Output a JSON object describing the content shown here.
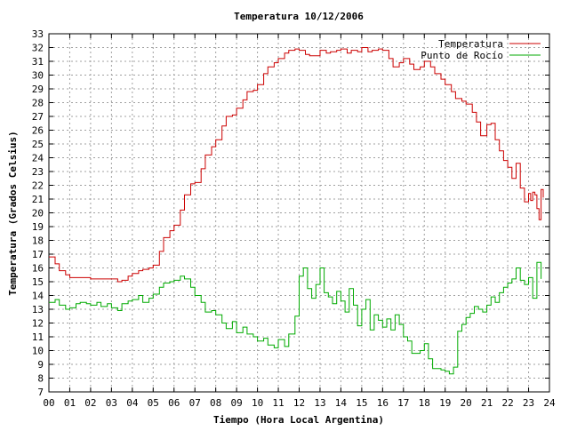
{
  "chart_data": {
    "type": "line",
    "title": "Temperatura 10/12/2006",
    "xlabel": "Tiempo (Hora Local Argentina)",
    "ylabel": "Temperatura (Grados Celsius)",
    "xlim": [
      0,
      24
    ],
    "ylim": [
      7,
      33
    ],
    "xticks": [
      "00",
      "01",
      "02",
      "03",
      "04",
      "05",
      "06",
      "07",
      "08",
      "09",
      "10",
      "11",
      "12",
      "13",
      "14",
      "15",
      "16",
      "17",
      "18",
      "19",
      "20",
      "21",
      "22",
      "23",
      "24"
    ],
    "yticks": [
      7,
      8,
      9,
      10,
      11,
      12,
      13,
      14,
      15,
      16,
      17,
      18,
      19,
      20,
      21,
      22,
      23,
      24,
      25,
      26,
      27,
      28,
      29,
      30,
      31,
      32,
      33
    ],
    "grid": true,
    "legend_position": "top-right",
    "series": [
      {
        "name": "Temperatura",
        "color": "#cc0000",
        "x": [
          0.0,
          0.3,
          0.5,
          0.8,
          1.0,
          1.5,
          2.0,
          2.5,
          3.0,
          3.3,
          3.5,
          3.8,
          4.0,
          4.3,
          4.5,
          4.8,
          5.0,
          5.3,
          5.5,
          5.8,
          6.0,
          6.3,
          6.5,
          6.8,
          7.0,
          7.3,
          7.5,
          7.8,
          8.0,
          8.3,
          8.5,
          8.8,
          9.0,
          9.3,
          9.5,
          9.8,
          10.0,
          10.3,
          10.5,
          10.8,
          11.0,
          11.3,
          11.5,
          11.8,
          12.0,
          12.3,
          12.5,
          12.8,
          13.0,
          13.3,
          13.5,
          13.8,
          14.0,
          14.3,
          14.5,
          14.8,
          15.0,
          15.3,
          15.5,
          15.8,
          16.0,
          16.3,
          16.5,
          16.8,
          17.0,
          17.3,
          17.5,
          17.8,
          18.0,
          18.3,
          18.5,
          18.8,
          19.0,
          19.3,
          19.5,
          19.8,
          20.0,
          20.3,
          20.5,
          20.7,
          20.9,
          21.0,
          21.2,
          21.4,
          21.6,
          21.8,
          22.0,
          22.2,
          22.4,
          22.6,
          22.8,
          23.0,
          23.1,
          23.2,
          23.3,
          23.4,
          23.5,
          23.6,
          23.7
        ],
        "values": [
          16.8,
          16.3,
          15.8,
          15.5,
          15.3,
          15.3,
          15.2,
          15.2,
          15.2,
          15.0,
          15.1,
          15.4,
          15.6,
          15.8,
          15.9,
          16.0,
          16.2,
          17.2,
          18.2,
          18.7,
          19.1,
          20.2,
          21.3,
          22.1,
          22.2,
          23.2,
          24.2,
          24.8,
          25.3,
          26.3,
          27.0,
          27.1,
          27.6,
          28.2,
          28.8,
          28.9,
          29.3,
          30.1,
          30.6,
          30.9,
          31.2,
          31.6,
          31.8,
          31.9,
          31.8,
          31.5,
          31.4,
          31.4,
          31.8,
          31.6,
          31.7,
          31.8,
          31.9,
          31.6,
          31.8,
          31.7,
          32.0,
          31.7,
          31.8,
          31.9,
          31.8,
          31.2,
          30.6,
          30.9,
          31.2,
          30.8,
          30.4,
          30.6,
          31.0,
          30.6,
          30.1,
          29.7,
          29.3,
          28.8,
          28.3,
          28.1,
          27.9,
          27.3,
          26.6,
          25.6,
          25.6,
          26.4,
          26.5,
          25.3,
          24.5,
          23.8,
          23.3,
          22.5,
          23.6,
          21.8,
          20.8,
          21.4,
          20.9,
          21.5,
          21.3,
          20.3,
          19.5,
          21.7,
          21.1
        ]
      },
      {
        "name": "Punto de Rocío",
        "color": "#00aa00",
        "x": [
          0.0,
          0.3,
          0.5,
          0.8,
          1.0,
          1.3,
          1.5,
          1.8,
          2.0,
          2.3,
          2.5,
          2.8,
          3.0,
          3.3,
          3.5,
          3.8,
          4.0,
          4.3,
          4.5,
          4.8,
          5.0,
          5.3,
          5.5,
          5.8,
          6.0,
          6.3,
          6.5,
          6.8,
          7.0,
          7.3,
          7.5,
          7.8,
          8.0,
          8.3,
          8.5,
          8.8,
          9.0,
          9.3,
          9.5,
          9.8,
          10.0,
          10.3,
          10.5,
          10.8,
          11.0,
          11.3,
          11.5,
          11.8,
          12.0,
          12.2,
          12.4,
          12.6,
          12.8,
          13.0,
          13.2,
          13.4,
          13.6,
          13.8,
          14.0,
          14.2,
          14.4,
          14.6,
          14.8,
          15.0,
          15.2,
          15.4,
          15.6,
          15.8,
          16.0,
          16.2,
          16.4,
          16.6,
          16.8,
          17.0,
          17.2,
          17.4,
          17.6,
          17.8,
          18.0,
          18.2,
          18.4,
          18.6,
          18.8,
          19.0,
          19.2,
          19.4,
          19.6,
          19.8,
          20.0,
          20.2,
          20.4,
          20.6,
          20.8,
          21.0,
          21.2,
          21.4,
          21.6,
          21.8,
          22.0,
          22.2,
          22.4,
          22.6,
          22.8,
          23.0,
          23.2,
          23.4,
          23.6
        ],
        "values": [
          13.5,
          13.7,
          13.3,
          13.0,
          13.1,
          13.4,
          13.5,
          13.4,
          13.3,
          13.5,
          13.2,
          13.4,
          13.1,
          12.9,
          13.4,
          13.6,
          13.7,
          14.0,
          13.5,
          13.8,
          14.1,
          14.6,
          14.9,
          15.0,
          15.1,
          15.4,
          15.2,
          14.6,
          14.0,
          13.5,
          12.8,
          12.9,
          12.6,
          12.0,
          11.6,
          12.1,
          11.3,
          11.7,
          11.2,
          11.0,
          10.7,
          10.9,
          10.4,
          10.2,
          10.8,
          10.3,
          11.2,
          12.5,
          15.4,
          16.0,
          14.5,
          13.8,
          14.8,
          16.0,
          14.2,
          13.9,
          13.4,
          14.3,
          13.6,
          12.8,
          14.5,
          13.3,
          11.8,
          13.0,
          13.7,
          11.5,
          12.6,
          12.2,
          11.7,
          12.3,
          11.5,
          12.6,
          11.9,
          11.0,
          10.7,
          9.8,
          9.8,
          10.0,
          10.5,
          9.4,
          8.7,
          8.7,
          8.6,
          8.5,
          8.3,
          8.8,
          11.4,
          11.9,
          12.4,
          12.7,
          13.2,
          13.0,
          12.8,
          13.3,
          13.9,
          13.5,
          14.2,
          14.6,
          14.9,
          15.2,
          16.0,
          15.1,
          14.8,
          15.3,
          13.8,
          16.4,
          15.2
        ]
      }
    ]
  }
}
